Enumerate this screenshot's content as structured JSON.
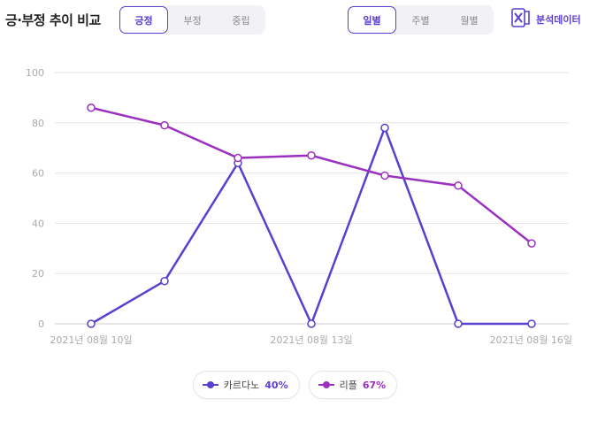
{
  "header": {
    "title": "긍·부정 추이 비교",
    "sentiment_tabs": [
      {
        "label": "긍정",
        "active": true
      },
      {
        "label": "부정",
        "active": false
      },
      {
        "label": "중립",
        "active": false
      }
    ],
    "period_tabs": [
      {
        "label": "일별",
        "active": true
      },
      {
        "label": "주별",
        "active": false
      },
      {
        "label": "월별",
        "active": false
      }
    ],
    "export_label": "분석데이터",
    "export_icon": "excel-icon"
  },
  "colors": {
    "accent": "#5b3fd0",
    "series1": "#5b3fd0",
    "series2": "#9b30c0",
    "grid": "#e5e5e5",
    "axis_text": "#aaaaaa"
  },
  "legend": [
    {
      "name": "카르다노",
      "pct": "40%"
    },
    {
      "name": "리플",
      "pct": "67%"
    }
  ],
  "chart_data": {
    "type": "line",
    "x": [
      "2021-08-10",
      "2021-08-11",
      "2021-08-12",
      "2021-08-13",
      "2021-08-14",
      "2021-08-15",
      "2021-08-16"
    ],
    "x_tick_labels": [
      "2021년 08월 10일",
      "2021년 08월 13일",
      "2021년 08월 16일"
    ],
    "x_tick_indices": [
      0,
      3,
      6
    ],
    "series": [
      {
        "name": "카르다노",
        "values": [
          0,
          17,
          64,
          0,
          78,
          0,
          0
        ]
      },
      {
        "name": "리플",
        "values": [
          86,
          79,
          66,
          67,
          59,
          55,
          32
        ]
      }
    ],
    "ylim": [
      0,
      100
    ],
    "y_ticks": [
      0,
      20,
      40,
      60,
      80,
      100
    ],
    "grid": true,
    "legend_position": "bottom"
  }
}
